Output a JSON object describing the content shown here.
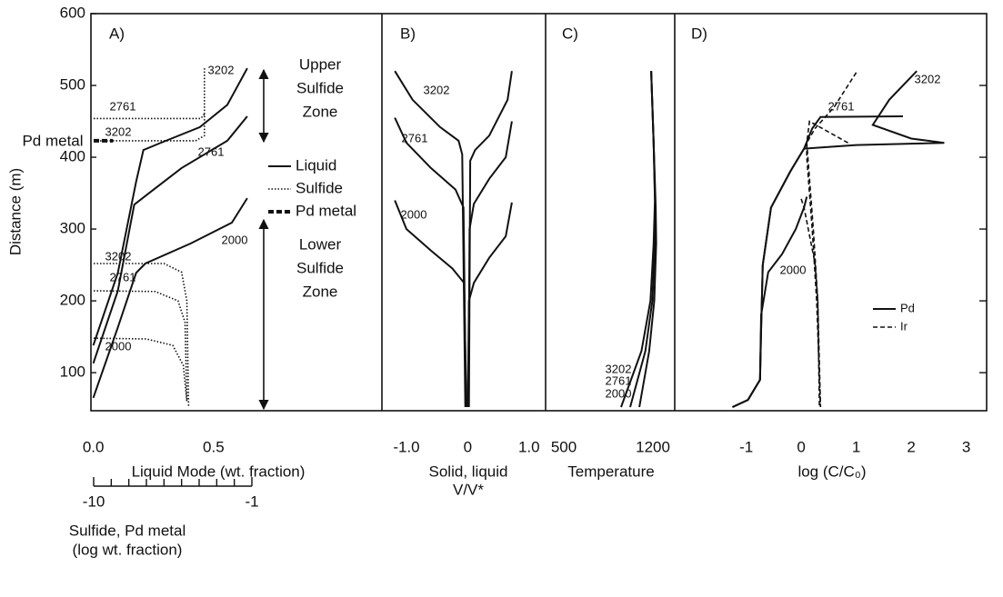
{
  "chart_data": [
    {
      "type": "line",
      "panel_label": "A)",
      "ylabel": "Distance (m)",
      "xlabel": "Liquid Mode (wt. fraction)",
      "xlim": [
        -0.01,
        1.2
      ],
      "xticks": [
        {
          "value": 0,
          "label": "0.0"
        },
        0.5
      ],
      "ylim": [
        47,
        600
      ],
      "yticks": [
        100,
        200,
        300,
        400,
        500,
        600
      ],
      "x2label": [
        "Sulfide, Pd metal",
        "(log wt. fraction)"
      ],
      "x2lim": [
        -10,
        -1
      ],
      "x2ticks": [
        -10,
        -1
      ],
      "x2minor": [
        -9,
        -8,
        -7,
        -6,
        -5,
        -4,
        -3,
        -2
      ],
      "legend": [
        {
          "label": "Liquid",
          "style": "solid"
        },
        {
          "label": "Sulfide",
          "style": "dotted"
        },
        {
          "label": "Pd metal",
          "style": "bold-dashed"
        }
      ],
      "upper_zone": [
        "Upper",
        "Sulfide",
        "Zone"
      ],
      "lower_zone": [
        "Lower",
        "Sulfide",
        "Zone"
      ],
      "series": [
        {
          "name": "3202",
          "style": "solid",
          "x": [
            0,
            0.102,
            0.178,
            0.208,
            0.273,
            0.443,
            0.557,
            0.64
          ],
          "y": [
            138,
            239,
            366,
            410,
            419,
            442,
            473,
            524
          ]
        },
        {
          "name": "2761",
          "style": "solid",
          "x": [
            0,
            0.102,
            0.17,
            0.235,
            0.367,
            0.557,
            0.64
          ],
          "y": [
            113,
            214,
            334,
            351,
            385,
            423,
            457
          ]
        },
        {
          "name": "2000",
          "style": "solid",
          "x": [
            0,
            0.102,
            0.178,
            0.216,
            0.405,
            0.576,
            0.64
          ],
          "y": [
            65,
            163,
            239,
            252,
            280,
            309,
            343
          ]
        },
        {
          "name": "2761",
          "style": "dotted",
          "axis": "x2",
          "x": [
            -10,
            -3.9,
            -3.7
          ],
          "y": [
            454,
            454,
            460
          ]
        },
        {
          "name": "3202",
          "style": "dotted",
          "axis": "x2",
          "x": [
            -10,
            -4.2,
            -3.7,
            -3.7
          ],
          "y": [
            423,
            423,
            430,
            524
          ]
        },
        {
          "name": "Pd metal",
          "style": "bold-dashed",
          "axis": "x2",
          "x": [
            -10,
            -8.9
          ],
          "y": [
            423,
            423
          ]
        },
        {
          "name": "3202",
          "style": "dotted",
          "axis": "x2",
          "x": [
            -10,
            -6.0,
            -5.0,
            -4.7,
            -4.6
          ],
          "y": [
            252,
            252,
            240,
            200,
            52
          ]
        },
        {
          "name": "2761",
          "style": "dotted",
          "axis": "x2",
          "x": [
            -10,
            -6.5,
            -5.2,
            -4.8,
            -4.7
          ],
          "y": [
            214,
            213,
            200,
            170,
            60
          ]
        },
        {
          "name": "2000",
          "style": "dotted",
          "axis": "x2",
          "x": [
            -10,
            -7,
            -5.5,
            -4.9,
            -4.7
          ],
          "y": [
            148,
            147,
            138,
            110,
            60
          ]
        }
      ]
    },
    {
      "type": "line",
      "panel_label": "B)",
      "xlabel": [
        "Solid, liquid",
        "V/V*"
      ],
      "xlim": [
        -1.4,
        1.27
      ],
      "xticks": [
        {
          "value": -1,
          "label": "-1.0"
        },
        0,
        {
          "value": 1,
          "label": "1.0"
        }
      ],
      "ylim": [
        47,
        600
      ],
      "series": [
        {
          "name": "3202",
          "style": "solid",
          "x": [
            -1.19,
            -0.9,
            -0.45,
            -0.15,
            -0.09,
            -0.04
          ],
          "y": [
            520,
            480,
            442,
            423,
            404,
            52
          ]
        },
        {
          "style": "solid",
          "x": [
            0.72,
            0.65,
            0.35,
            0.12,
            0.04,
            0.02
          ],
          "y": [
            520,
            480,
            430,
            410,
            395,
            52
          ]
        },
        {
          "name": "2761",
          "style": "solid",
          "x": [
            -1.19,
            -1.0,
            -0.6,
            -0.2,
            -0.07,
            -0.03
          ],
          "y": [
            455,
            420,
            385,
            355,
            330,
            52
          ]
        },
        {
          "style": "solid",
          "x": [
            0.72,
            0.62,
            0.35,
            0.1,
            0.03,
            0.01
          ],
          "y": [
            450,
            400,
            370,
            335,
            300,
            52
          ]
        },
        {
          "name": "2000",
          "style": "solid",
          "x": [
            -1.19,
            -1.0,
            -0.6,
            -0.25,
            -0.06,
            -0.02
          ],
          "y": [
            340,
            300,
            270,
            245,
            225,
            52
          ]
        },
        {
          "style": "solid",
          "x": [
            0.72,
            0.62,
            0.35,
            0.1,
            0.02,
            0.0
          ],
          "y": [
            337,
            290,
            260,
            225,
            200,
            52
          ]
        }
      ]
    },
    {
      "type": "line",
      "panel_label": "C)",
      "xlabel": "Temperature",
      "xlim": [
        357,
        1371
      ],
      "xticks": [
        500,
        1200
      ],
      "ylim": [
        47,
        600
      ],
      "series": [
        {
          "name": "3202",
          "style": "solid",
          "x": [
            1186,
            1205,
            1222,
            1225,
            1210,
            1170,
            1093
          ],
          "y": [
            520,
            420,
            330,
            280,
            200,
            130,
            52
          ]
        },
        {
          "name": "2761",
          "style": "solid",
          "x": [
            1186,
            1205,
            1218,
            1215,
            1195,
            1140,
            1021
          ],
          "y": [
            520,
            420,
            330,
            280,
            200,
            130,
            52
          ]
        },
        {
          "name": "2000",
          "style": "solid",
          "x": [
            1186,
            1205,
            1215,
            1205,
            1180,
            1110,
            950
          ],
          "y": [
            520,
            420,
            340,
            280,
            200,
            130,
            52
          ]
        }
      ]
    },
    {
      "type": "line",
      "panel_label": "D)",
      "xlabel": "log (C/C₀)",
      "xlim": [
        -2.3,
        3.37
      ],
      "xticks": [
        -1,
        0,
        1,
        2,
        3
      ],
      "ylim": [
        47,
        600
      ],
      "yticks": [
        100,
        200,
        300,
        400,
        500
      ],
      "legend": [
        {
          "label": "Pd",
          "style": "solid"
        },
        {
          "label": "Ir",
          "style": "dashed"
        }
      ],
      "series": [
        {
          "name": "3202",
          "style": "solid",
          "x": [
            -1.25,
            -0.97,
            -0.75,
            -0.73,
            -0.7,
            -0.55,
            -0.2,
            0.05,
            1.0,
            2.6,
            2.0,
            1.3,
            1.6,
            2.1
          ],
          "y": [
            52,
            62,
            90,
            160,
            250,
            330,
            380,
            412,
            417,
            420,
            426,
            445,
            480,
            520
          ]
        },
        {
          "name": "2761",
          "style": "solid",
          "x": [
            -1.25,
            -0.97,
            -0.75,
            -0.73,
            -0.7,
            -0.55,
            -0.2,
            0.05,
            0.2,
            0.35,
            1.85
          ],
          "y": [
            52,
            62,
            90,
            160,
            250,
            330,
            380,
            412,
            440,
            456,
            457
          ]
        },
        {
          "name": "2000",
          "style": "solid",
          "x": [
            -1.25,
            -0.97,
            -0.75,
            -0.73,
            -0.6,
            -0.35,
            -0.1,
            0.05,
            0.1
          ],
          "y": [
            52,
            62,
            90,
            180,
            240,
            265,
            300,
            330,
            345
          ]
        },
        {
          "style": "dashed",
          "x": [
            1.0,
            0.6,
            0.25,
            0.1,
            0.1,
            0.2,
            0.28,
            0.35
          ],
          "y": [
            518,
            470,
            440,
            420,
            400,
            300,
            200,
            52
          ]
        },
        {
          "style": "dashed",
          "x": [
            0.85,
            0.5,
            0.15,
            0.1,
            0.12,
            0.22,
            0.3,
            0.35
          ],
          "y": [
            420,
            435,
            450,
            420,
            400,
            300,
            200,
            52
          ]
        },
        {
          "style": "dashed",
          "x": [
            0.0,
            0.05,
            0.25,
            0.3,
            0.33
          ],
          "y": [
            342,
            330,
            252,
            200,
            52
          ]
        }
      ]
    }
  ]
}
